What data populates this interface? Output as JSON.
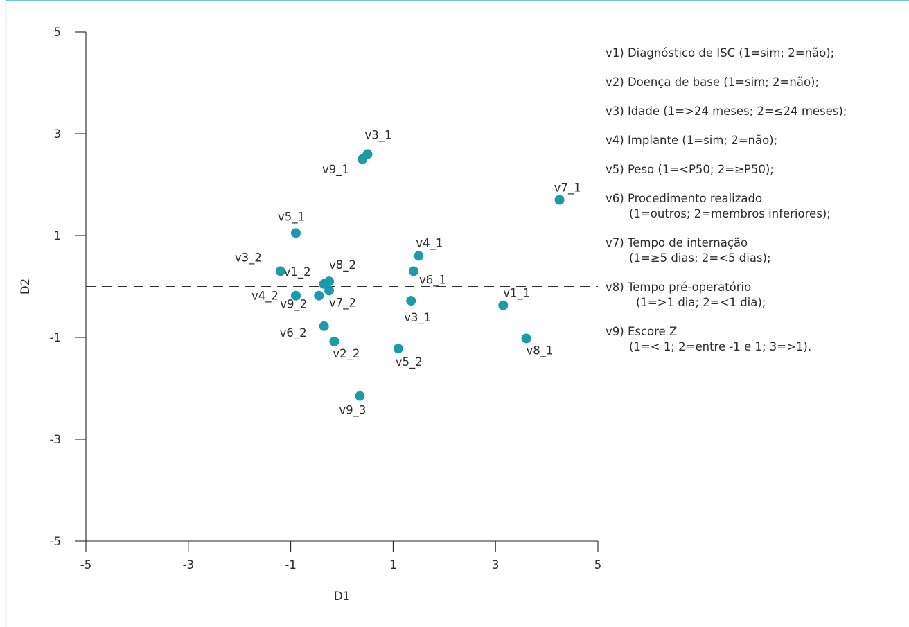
{
  "chart_data": {
    "type": "scatter",
    "title": "",
    "xlabel": "D1",
    "ylabel": "D2",
    "xlim": [
      -5,
      5
    ],
    "ylim": [
      -5,
      5
    ],
    "xticks": [
      "-5",
      "-3",
      "-1",
      "1",
      "3",
      "5"
    ],
    "yticks": [
      "5",
      "3",
      "1",
      "-1",
      "-3",
      "-5"
    ],
    "grid": false,
    "reference_lines": {
      "x": 0,
      "y": 0,
      "style": "dashed"
    },
    "marker_color": "#1b9aaa",
    "points": [
      {
        "label": "v3_1",
        "x": 0.5,
        "y": 2.6
      },
      {
        "label": "v9_1",
        "x": 0.4,
        "y": 2.5
      },
      {
        "label": "v7_1",
        "x": 4.25,
        "y": 1.7
      },
      {
        "label": "v5_1",
        "x": -0.9,
        "y": 1.05
      },
      {
        "label": "v4_1",
        "x": 1.5,
        "y": 0.6
      },
      {
        "label": "v6_1",
        "x": 1.4,
        "y": 0.3
      },
      {
        "label": "v3_2",
        "x": -1.2,
        "y": 0.3
      },
      {
        "label": "v1_2",
        "x": -0.35,
        "y": 0.05
      },
      {
        "label": "v8_2",
        "x": -0.25,
        "y": 0.1
      },
      {
        "label": "v7_2",
        "x": -0.25,
        "y": -0.08
      },
      {
        "label": "v4_2",
        "x": -0.9,
        "y": -0.18
      },
      {
        "label": "v9_2",
        "x": -0.45,
        "y": -0.18
      },
      {
        "label": "v3_1",
        "x": 1.35,
        "y": -0.28
      },
      {
        "label": "v1_1",
        "x": 3.15,
        "y": -0.37
      },
      {
        "label": "v6_2",
        "x": -0.35,
        "y": -0.78
      },
      {
        "label": "v8_1",
        "x": 3.6,
        "y": -1.02
      },
      {
        "label": "v2_2",
        "x": -0.15,
        "y": -1.08
      },
      {
        "label": "v5_2",
        "x": 1.1,
        "y": -1.22
      },
      {
        "label": "v9_3",
        "x": 0.35,
        "y": -2.15
      }
    ]
  },
  "legend": [
    {
      "line1": "v1) Diagnóstico de ISC (1=sim; 2=não);",
      "line2": ""
    },
    {
      "line1": "v2) Doença de base (1=sim; 2=não);",
      "line2": ""
    },
    {
      "line1": "v3) Idade (1=>24 meses; 2=≤24 meses);",
      "line2": ""
    },
    {
      "line1": "v4) Implante (1=sim; 2=não);",
      "line2": ""
    },
    {
      "line1": "v5) Peso (1=<P50; 2=≥P50);",
      "line2": ""
    },
    {
      "line1": "v6) Procedimento realizado",
      "line2": "(1=outros; 2=membros inferiores);"
    },
    {
      "line1": "v7) Tempo de internação",
      "line2": "(1=≥5 dias; 2=<5 dias);"
    },
    {
      "line1": "v8) Tempo pré-operatório",
      "line2": "(1=>1 dia; 2=<1 dia);"
    },
    {
      "line1": "v9) Escore Z",
      "line2": "(1=< 1; 2=entre -1 e 1; 3=>1)."
    }
  ],
  "colors": {
    "frame": "#3fb6c4",
    "axis": "#222222",
    "marker": "#1b9aaa"
  }
}
